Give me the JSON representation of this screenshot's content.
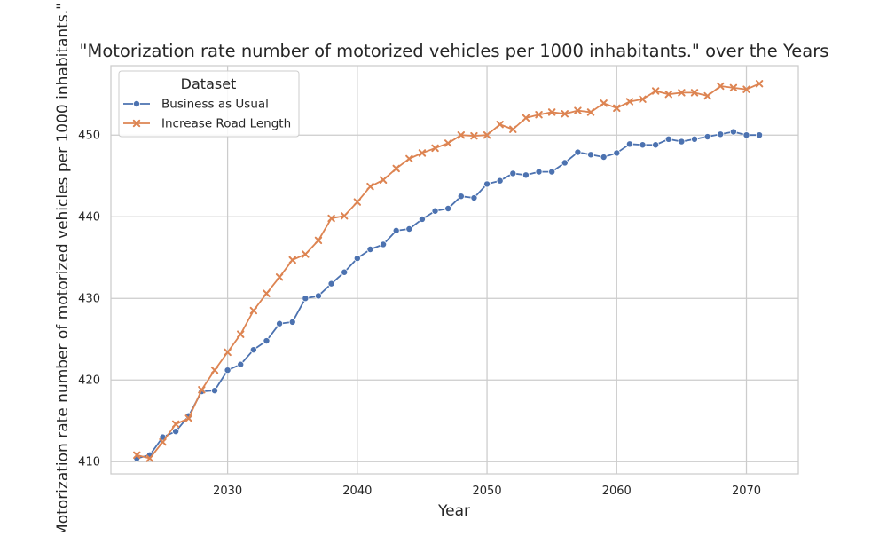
{
  "chart_data": {
    "type": "line",
    "title": "\"Motorization rate number of motorized vehicles per 1000 inhabitants.\" over the Years",
    "xlabel": "Year",
    "ylabel": "Motorization rate number of motorized vehicles per 1000 inhabitants.\"",
    "xlim": [
      2021,
      2074
    ],
    "ylim": [
      408.5,
      458.5
    ],
    "x_ticks": [
      2030,
      2040,
      2050,
      2060,
      2070
    ],
    "y_ticks": [
      410,
      420,
      430,
      440,
      450
    ],
    "grid": true,
    "legend": {
      "title": "Dataset",
      "placement": "top-left"
    },
    "x": [
      2023,
      2024,
      2025,
      2026,
      2027,
      2028,
      2029,
      2030,
      2031,
      2032,
      2033,
      2034,
      2035,
      2036,
      2037,
      2038,
      2039,
      2040,
      2041,
      2042,
      2043,
      2044,
      2045,
      2046,
      2047,
      2048,
      2049,
      2050,
      2051,
      2052,
      2053,
      2054,
      2055,
      2056,
      2057,
      2058,
      2059,
      2060,
      2061,
      2062,
      2063,
      2064,
      2065,
      2066,
      2067,
      2068,
      2069,
      2070,
      2071
    ],
    "series": [
      {
        "name": "Business as Usual",
        "color": "#4c72b0",
        "marker": "circle",
        "values": [
          410.4,
          410.8,
          413.0,
          413.7,
          415.6,
          418.6,
          418.7,
          421.2,
          421.9,
          423.7,
          424.8,
          426.9,
          427.1,
          430.0,
          430.3,
          431.8,
          433.2,
          434.9,
          436.0,
          436.6,
          438.3,
          438.5,
          439.7,
          440.7,
          441.0,
          442.5,
          442.3,
          444.0,
          444.4,
          445.3,
          445.1,
          445.5,
          445.5,
          446.6,
          447.9,
          447.6,
          447.3,
          447.8,
          448.9,
          448.8,
          448.8,
          449.5,
          449.2,
          449.5,
          449.8,
          450.1,
          450.4,
          450.0,
          450.0
        ]
      },
      {
        "name": "Increase Road Length",
        "color": "#dd8452",
        "marker": "x",
        "values": [
          410.8,
          410.4,
          412.4,
          414.6,
          415.3,
          418.8,
          421.2,
          423.4,
          425.6,
          428.5,
          430.6,
          432.6,
          434.7,
          435.4,
          437.1,
          439.8,
          440.1,
          441.8,
          443.7,
          444.5,
          445.9,
          447.1,
          447.8,
          448.4,
          449.0,
          450.0,
          449.9,
          450.0,
          451.3,
          450.7,
          452.1,
          452.5,
          452.8,
          452.6,
          453.0,
          452.8,
          453.9,
          453.3,
          454.1,
          454.4,
          455.4,
          455.0,
          455.2,
          455.2,
          454.8,
          456.0,
          455.8,
          455.6,
          456.3
        ]
      }
    ]
  }
}
